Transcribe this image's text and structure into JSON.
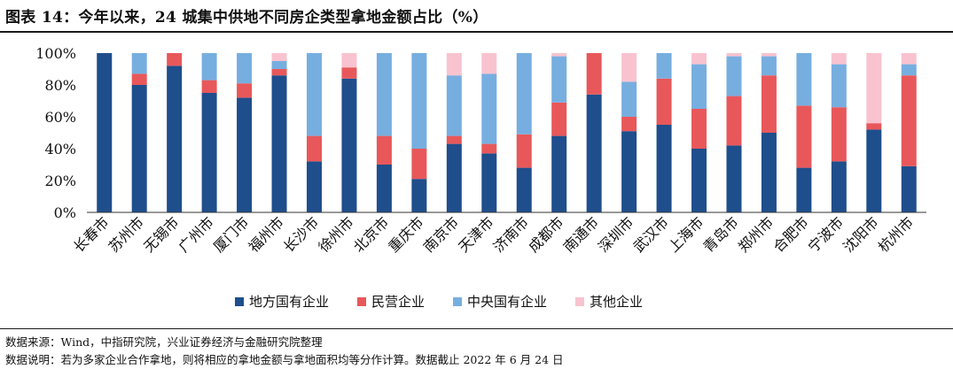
{
  "title": "图表 14：今年以来，24 城集中供地不同房企类型拿地金额占比（%）",
  "colors": {
    "local_soe": "#1f4e8c",
    "private": "#e8585a",
    "central_soe": "#77aee0",
    "other": "#f8c3cf"
  },
  "chart_data": {
    "type": "bar",
    "stacked": true,
    "ylim": [
      0,
      100
    ],
    "yticks": [
      "0%",
      "20%",
      "40%",
      "60%",
      "80%",
      "100%"
    ],
    "ytick_values": [
      0,
      20,
      40,
      60,
      80,
      100
    ],
    "grid": false,
    "legend_position": "bottom",
    "categories": [
      "长春市",
      "苏州市",
      "无锡市",
      "广州市",
      "厦门市",
      "福州市",
      "长沙市",
      "徐州市",
      "北京市",
      "重庆市",
      "南京市",
      "天津市",
      "济南市",
      "成都市",
      "南通市",
      "深圳市",
      "武汉市",
      "上海市",
      "青岛市",
      "郑州市",
      "合肥市",
      "宁波市",
      "沈阳市",
      "杭州市"
    ],
    "series": [
      {
        "name": "地方国有企业",
        "color_key": "local_soe",
        "values": [
          100,
          80,
          92,
          75,
          72,
          86,
          32,
          84,
          30,
          21,
          43,
          37,
          28,
          48,
          74,
          51,
          55,
          40,
          42,
          50,
          28,
          32,
          52,
          29
        ]
      },
      {
        "name": "民营企业",
        "color_key": "private",
        "values": [
          0,
          7,
          8,
          8,
          9,
          4,
          16,
          7,
          18,
          19,
          5,
          6,
          21,
          21,
          26,
          9,
          29,
          25,
          31,
          36,
          39,
          34,
          4,
          57
        ]
      },
      {
        "name": "中央国有企业",
        "color_key": "central_soe",
        "values": [
          0,
          13,
          0,
          17,
          19,
          5,
          52,
          0,
          52,
          60,
          38,
          44,
          51,
          29,
          0,
          22,
          16,
          28,
          25,
          12,
          33,
          27,
          0,
          7
        ]
      },
      {
        "name": "其他企业",
        "color_key": "other",
        "values": [
          0,
          0,
          0,
          0,
          0,
          5,
          0,
          9,
          0,
          0,
          14,
          13,
          0,
          2,
          0,
          18,
          0,
          7,
          2,
          2,
          0,
          7,
          44,
          7
        ]
      }
    ]
  },
  "notes": {
    "source": "数据来源：Wind，中指研究院，兴业证券经济与金融研究院整理",
    "explanation": "数据说明：若为多家企业合作拿地，则将相应的拿地金额与拿地面积均等分作计算。数据截止 2022 年 6 月 24 日"
  }
}
